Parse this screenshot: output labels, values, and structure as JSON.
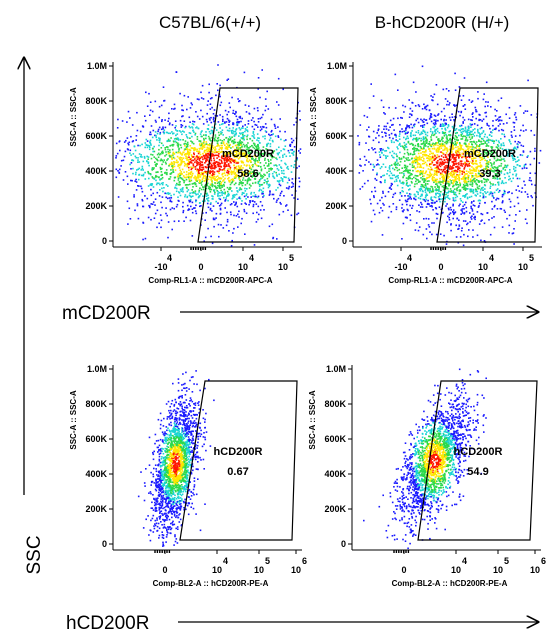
{
  "column_titles": [
    "C57BL/6(+/+)",
    "B-hCD200R (H/+)"
  ],
  "row_labels": [
    "mCD200R",
    "hCD200R"
  ],
  "y_big_label": "SSC",
  "colors": {
    "low": "#1a1aff",
    "mid": "#19d4d4",
    "mid2": "#2bd94a",
    "high": "#ffe600",
    "peak": "#ff1500"
  },
  "chart_data": [
    {
      "type": "scatter",
      "subtype": "flow-cytometry-density",
      "xlabel": "Comp-RL1-A :: mCD200R-APC-A",
      "ylabel": "SSC-A :: SSC-A",
      "y_ticks": [
        "0",
        "200K",
        "400K",
        "600K",
        "800K",
        "1.0M"
      ],
      "x_ticks": [
        {
          "base": "-10",
          "exp": "4"
        },
        {
          "base": "0",
          "exp": ""
        },
        {
          "base": "10",
          "exp": "4"
        },
        {
          "base": "10",
          "exp": "5"
        }
      ],
      "gate": {
        "name": "mCD200R",
        "percent": "58.6"
      },
      "population": {
        "x_center": 0.3,
        "y_center": 450000
      }
    },
    {
      "type": "scatter",
      "subtype": "flow-cytometry-density",
      "xlabel": "Comp-RL1-A :: mCD200R-APC-A",
      "ylabel": "SSC-A :: SSC-A",
      "y_ticks": [
        "0",
        "200K",
        "400K",
        "600K",
        "800K",
        "1.0M"
      ],
      "x_ticks": [
        {
          "base": "-10",
          "exp": "4"
        },
        {
          "base": "0",
          "exp": ""
        },
        {
          "base": "10",
          "exp": "4"
        },
        {
          "base": "10",
          "exp": "5"
        }
      ],
      "gate": {
        "name": "mCD200R",
        "percent": "39.3"
      },
      "population": {
        "x_center": 0.1,
        "y_center": 450000
      }
    },
    {
      "type": "scatter",
      "subtype": "flow-cytometry-density",
      "xlabel": "Comp-BL2-A :: hCD200R-PE-A",
      "ylabel": "SSC-A :: SSC-A",
      "y_ticks": [
        "0",
        "200K",
        "400K",
        "600K",
        "800K",
        "1.0M"
      ],
      "x_ticks": [
        {
          "base": "0",
          "exp": ""
        },
        {
          "base": "10",
          "exp": "4"
        },
        {
          "base": "10",
          "exp": "5"
        },
        {
          "base": "10",
          "exp": "6"
        }
      ],
      "gate": {
        "name": "hCD200R",
        "percent": "0.67"
      },
      "population": {
        "x_center": 0.1,
        "y_center": 460000
      }
    },
    {
      "type": "scatter",
      "subtype": "flow-cytometry-density",
      "xlabel": "Comp-BL2-A :: hCD200R-PE-A",
      "ylabel": "SSC-A :: SSC-A",
      "y_ticks": [
        "0",
        "200K",
        "400K",
        "600K",
        "800K",
        "1.0M"
      ],
      "x_ticks": [
        {
          "base": "0",
          "exp": ""
        },
        {
          "base": "10",
          "exp": "4"
        },
        {
          "base": "10",
          "exp": "5"
        },
        {
          "base": "10",
          "exp": "6"
        }
      ],
      "gate": {
        "name": "hCD200R",
        "percent": "54.9"
      },
      "population": {
        "x_center": 0.5,
        "y_center": 480000
      }
    }
  ]
}
